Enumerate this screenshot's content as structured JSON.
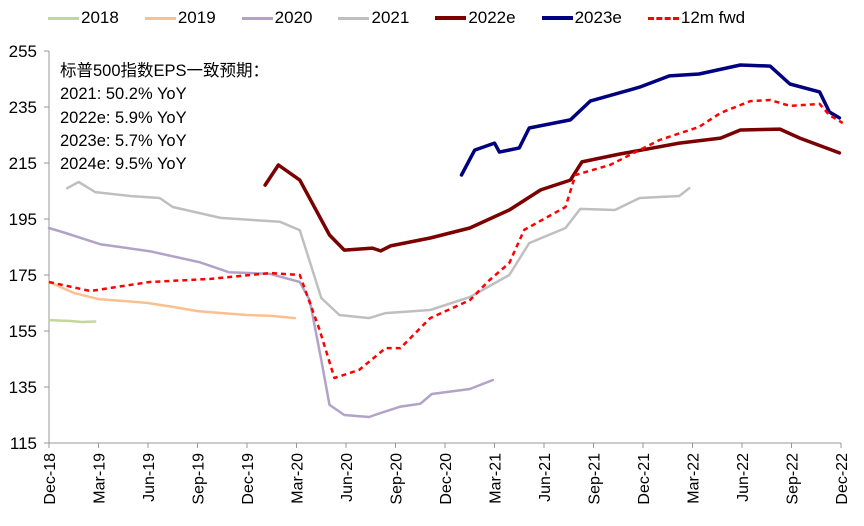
{
  "chart_data": {
    "type": "line",
    "title": "",
    "xlabel": "",
    "ylabel": "",
    "ylim": [
      115,
      255
    ],
    "yticks": [
      115,
      135,
      155,
      175,
      195,
      215,
      235,
      255
    ],
    "x_unit": "months since Dec-18",
    "xlim": [
      0,
      48
    ],
    "xtick_labels": [
      "Dec-18",
      "Mar-19",
      "Jun-19",
      "Sep-19",
      "Dec-19",
      "Mar-20",
      "Jun-20",
      "Sep-20",
      "Dec-20",
      "Mar-21",
      "Jun-21",
      "Sep-21",
      "Dec-21",
      "Mar-22",
      "Jun-22",
      "Sep-22",
      "Dec-22"
    ],
    "legend_position": "top",
    "grid": false,
    "annotation": [
      "标普500指数EPS一致预期：",
      "2021: 50.2% YoY",
      "2022e: 5.9% YoY",
      "2023e: 5.7% YoY",
      "2024e: 9.5% YoY"
    ],
    "series": [
      {
        "name": "2018",
        "color": "#C3D69B",
        "dashed": false,
        "width": 2.5,
        "points": [
          [
            0,
            158.9
          ],
          [
            1.2,
            158.6
          ],
          [
            2,
            158.2
          ],
          [
            2.8,
            158.4
          ]
        ]
      },
      {
        "name": "2019",
        "color": "#FAC090",
        "dashed": false,
        "width": 2.5,
        "points": [
          [
            0,
            172.5
          ],
          [
            1.5,
            168.6
          ],
          [
            3,
            166.4
          ],
          [
            4.5,
            165.7
          ],
          [
            6,
            165
          ],
          [
            7.5,
            163.6
          ],
          [
            9,
            162.1
          ],
          [
            10.5,
            161.4
          ],
          [
            12,
            160.7
          ],
          [
            13.5,
            160.4
          ],
          [
            14.9,
            159.6
          ]
        ]
      },
      {
        "name": "2020",
        "color": "#B3A2C7",
        "dashed": false,
        "width": 2.5,
        "points": [
          [
            0,
            191.8
          ],
          [
            1,
            190
          ],
          [
            3.1,
            186
          ],
          [
            6.1,
            183.5
          ],
          [
            9.1,
            179.6
          ],
          [
            10.9,
            176
          ],
          [
            13.4,
            175.4
          ],
          [
            15.2,
            172.5
          ],
          [
            15.8,
            166
          ],
          [
            16.5,
            144.6
          ],
          [
            17,
            128.6
          ],
          [
            17.9,
            125
          ],
          [
            19.4,
            124.3
          ],
          [
            20.1,
            125.7
          ],
          [
            21.3,
            128
          ],
          [
            22.5,
            129
          ],
          [
            23.2,
            132.5
          ],
          [
            25.5,
            134.3
          ],
          [
            26.9,
            137.5
          ]
        ]
      },
      {
        "name": "2021",
        "color": "#BFBFBF",
        "dashed": false,
        "width": 2.5,
        "points": [
          [
            1.1,
            206
          ],
          [
            1.8,
            208.2
          ],
          [
            2.8,
            204.6
          ],
          [
            4.9,
            203.2
          ],
          [
            6.7,
            202.5
          ],
          [
            7.5,
            199.3
          ],
          [
            10.4,
            195.4
          ],
          [
            14,
            194
          ],
          [
            15.2,
            191
          ],
          [
            16.5,
            166.8
          ],
          [
            17.6,
            160.7
          ],
          [
            19.4,
            159.6
          ],
          [
            20.4,
            161.4
          ],
          [
            23.1,
            162.5
          ],
          [
            25.5,
            167.1
          ],
          [
            27.9,
            175
          ],
          [
            29.1,
            186.4
          ],
          [
            31.3,
            191.8
          ],
          [
            32.2,
            198.6
          ],
          [
            34.3,
            198.2
          ],
          [
            35.8,
            202.5
          ],
          [
            38.2,
            203.2
          ],
          [
            38.8,
            206
          ]
        ]
      },
      {
        "name": "2022e",
        "color": "#7B0000",
        "dashed": false,
        "width": 3.5,
        "points": [
          [
            13.1,
            207.1
          ],
          [
            13.9,
            214.3
          ],
          [
            15.2,
            208.9
          ],
          [
            17,
            189.3
          ],
          [
            17.9,
            183.9
          ],
          [
            19.6,
            184.6
          ],
          [
            20.1,
            183.6
          ],
          [
            20.7,
            185.4
          ],
          [
            23.1,
            188.2
          ],
          [
            25.5,
            191.8
          ],
          [
            27.9,
            198.2
          ],
          [
            29.8,
            205.4
          ],
          [
            31.6,
            208.9
          ],
          [
            32.3,
            215.4
          ],
          [
            34.6,
            218.2
          ],
          [
            38.2,
            222.1
          ],
          [
            40.7,
            223.9
          ],
          [
            41.9,
            226.8
          ],
          [
            44.3,
            227.1
          ],
          [
            45.5,
            223.9
          ],
          [
            47.9,
            218.6
          ]
        ]
      },
      {
        "name": "2023e",
        "color": "#000080",
        "dashed": false,
        "width": 3.5,
        "points": [
          [
            25,
            210.7
          ],
          [
            25.8,
            219.6
          ],
          [
            27,
            222.1
          ],
          [
            27.3,
            218.9
          ],
          [
            28.5,
            220.4
          ],
          [
            29.1,
            227.5
          ],
          [
            31.6,
            230.4
          ],
          [
            32.8,
            237.1
          ],
          [
            35.8,
            242.1
          ],
          [
            37.6,
            246.1
          ],
          [
            39.4,
            246.8
          ],
          [
            41.9,
            250
          ],
          [
            43.7,
            249.6
          ],
          [
            44.9,
            243.2
          ],
          [
            46.7,
            240.4
          ],
          [
            47.3,
            233.2
          ],
          [
            47.9,
            231.1
          ]
        ]
      },
      {
        "name": "12m fwd",
        "color": "#FF0000",
        "dashed": true,
        "width": 2.5,
        "points": [
          [
            0,
            172.5
          ],
          [
            2.5,
            169.3
          ],
          [
            6.1,
            172.5
          ],
          [
            9.8,
            173.6
          ],
          [
            13.4,
            175.7
          ],
          [
            15.2,
            175
          ],
          [
            16.4,
            155.4
          ],
          [
            17.3,
            138.2
          ],
          [
            18.8,
            141.1
          ],
          [
            20.4,
            148.9
          ],
          [
            21.3,
            148.9
          ],
          [
            23.1,
            159.6
          ],
          [
            25.5,
            166
          ],
          [
            26.7,
            173.2
          ],
          [
            27.9,
            179.3
          ],
          [
            28.8,
            191.1
          ],
          [
            31.3,
            199.3
          ],
          [
            31.9,
            210.7
          ],
          [
            34,
            214.3
          ],
          [
            37,
            223.2
          ],
          [
            39.4,
            227.9
          ],
          [
            40.7,
            232.9
          ],
          [
            42.5,
            237.1
          ],
          [
            43.7,
            237.5
          ],
          [
            44.9,
            235.4
          ],
          [
            46.7,
            236.1
          ],
          [
            47.3,
            232.1
          ],
          [
            48.1,
            229.3
          ]
        ]
      }
    ]
  }
}
